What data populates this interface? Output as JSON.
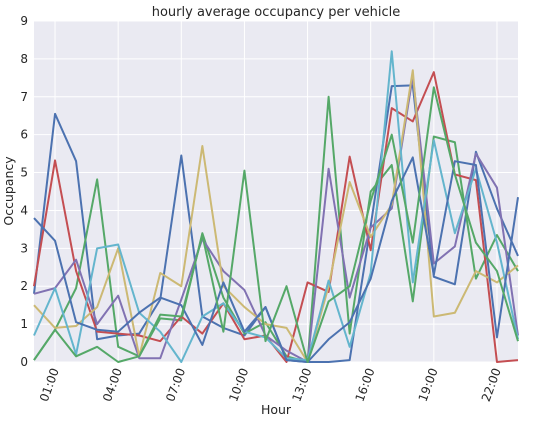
{
  "chart_data": {
    "type": "line",
    "title": "hourly average occupancy per vehicle",
    "xlabel": "Hour",
    "ylabel": "Occupancy",
    "xlim": [
      0,
      23
    ],
    "ylim": [
      0,
      9
    ],
    "x": [
      0,
      1,
      2,
      3,
      4,
      5,
      6,
      7,
      8,
      9,
      10,
      11,
      12,
      13,
      14,
      15,
      16,
      17,
      18,
      19,
      20,
      21,
      22,
      23
    ],
    "xticks": [
      1,
      4,
      7,
      10,
      13,
      16,
      19,
      22
    ],
    "xtick_labels": [
      "01:00",
      "04:00",
      "07:00",
      "10:00",
      "13:00",
      "16:00",
      "19:00",
      "22:00"
    ],
    "yticks": [
      0,
      1,
      2,
      3,
      4,
      5,
      6,
      7,
      8,
      9
    ],
    "ytick_labels": [
      "0",
      "1",
      "2",
      "3",
      "4",
      "5",
      "6",
      "7",
      "8",
      "9"
    ],
    "grid": true,
    "background": "#eaeaf2",
    "series": [
      {
        "color": "#4c72b0",
        "values": [
          1.8,
          6.55,
          5.3,
          0.6,
          0.7,
          0.75,
          1.65,
          5.45,
          1.2,
          0.9,
          0.7,
          1.45,
          0.05,
          0.0,
          0.0,
          0.05,
          3.6,
          7.28,
          7.3,
          2.25,
          2.05,
          5.55,
          4.05,
          2.8
        ]
      },
      {
        "color": "#55a868",
        "values": [
          0.05,
          0.85,
          1.95,
          4.82,
          0.4,
          0.15,
          1.15,
          1.1,
          3.4,
          1.7,
          0.75,
          1.05,
          0.15,
          0.0,
          7.0,
          0.75,
          4.5,
          5.2,
          1.6,
          5.95,
          5.8,
          2.2,
          3.35,
          2.4
        ]
      },
      {
        "color": "#c44e52",
        "values": [
          2.0,
          5.32,
          2.4,
          0.8,
          0.75,
          0.7,
          0.55,
          1.2,
          0.75,
          1.55,
          0.6,
          0.7,
          0.0,
          2.1,
          1.85,
          5.42,
          2.95,
          6.7,
          6.35,
          7.65,
          4.95,
          4.8,
          0.0,
          0.05
        ]
      },
      {
        "color": "#8172b2",
        "values": [
          1.8,
          1.95,
          2.7,
          1.0,
          1.75,
          0.1,
          0.1,
          1.65,
          3.25,
          2.4,
          1.9,
          0.7,
          0.3,
          0.0,
          5.1,
          1.7,
          3.55,
          4.05,
          7.55,
          2.6,
          3.05,
          5.5,
          4.6,
          0.7
        ]
      },
      {
        "color": "#ccb974",
        "values": [
          1.5,
          0.9,
          0.95,
          1.45,
          3.0,
          0.15,
          2.35,
          2.0,
          5.7,
          2.0,
          1.45,
          1.0,
          0.9,
          0.0,
          2.0,
          4.75,
          3.3,
          4.15,
          7.7,
          1.2,
          1.3,
          2.4,
          2.1,
          2.55
        ]
      },
      {
        "color": "#64b5cd",
        "values": [
          0.7,
          1.95,
          0.2,
          3.0,
          3.1,
          1.3,
          0.8,
          0.0,
          1.2,
          1.55,
          0.8,
          0.65,
          0.1,
          0.05,
          2.15,
          0.4,
          2.35,
          8.2,
          2.1,
          5.85,
          3.4,
          5.1,
          3.15,
          0.6
        ]
      },
      {
        "color": "#4c72b0",
        "values": [
          3.8,
          3.2,
          1.05,
          0.85,
          0.8,
          1.3,
          1.7,
          1.5,
          0.45,
          2.1,
          0.8,
          1.45,
          0.05,
          0.0,
          0.6,
          1.05,
          2.2,
          4.25,
          5.4,
          2.3,
          5.3,
          5.2,
          0.65,
          4.35
        ]
      },
      {
        "color": "#55a868",
        "values": [
          0.05,
          0.85,
          0.15,
          0.4,
          0.0,
          0.15,
          1.25,
          1.2,
          3.35,
          0.8,
          5.05,
          0.55,
          2.0,
          0.0,
          1.6,
          2.0,
          4.25,
          6.0,
          3.15,
          7.25,
          4.95,
          3.15,
          2.4,
          0.55
        ]
      }
    ]
  }
}
